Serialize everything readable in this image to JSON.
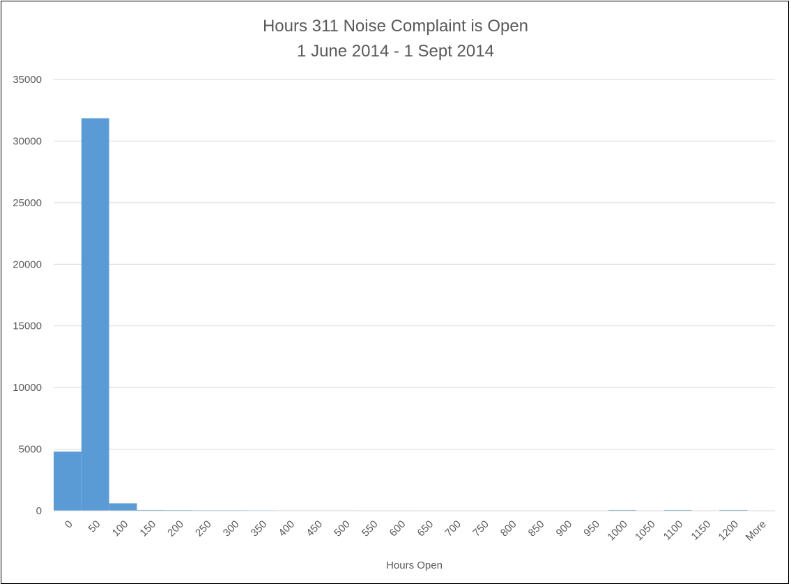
{
  "chart_data": {
    "type": "bar",
    "title": "Hours 311 Noise Complaint is Open",
    "subtitle": "1 June 2014 - 1 Sept 2014",
    "xlabel": "Hours Open",
    "ylabel": "",
    "categories": [
      "0",
      "50",
      "100",
      "150",
      "200",
      "250",
      "300",
      "350",
      "400",
      "450",
      "500",
      "550",
      "600",
      "650",
      "700",
      "750",
      "800",
      "850",
      "900",
      "950",
      "1000",
      "1050",
      "1100",
      "1150",
      "1200",
      "More"
    ],
    "values": [
      4800,
      31850,
      600,
      60,
      50,
      40,
      40,
      35,
      30,
      30,
      30,
      25,
      25,
      0,
      0,
      0,
      0,
      0,
      0,
      0,
      60,
      0,
      60,
      0,
      60,
      0
    ],
    "ylim": [
      0,
      35000
    ],
    "yticks": [
      0,
      5000,
      10000,
      15000,
      20000,
      25000,
      30000,
      35000
    ],
    "grid": true,
    "legend": "none",
    "bar_color": "#5b9bd5",
    "grid_color": "#d9d9d9"
  }
}
